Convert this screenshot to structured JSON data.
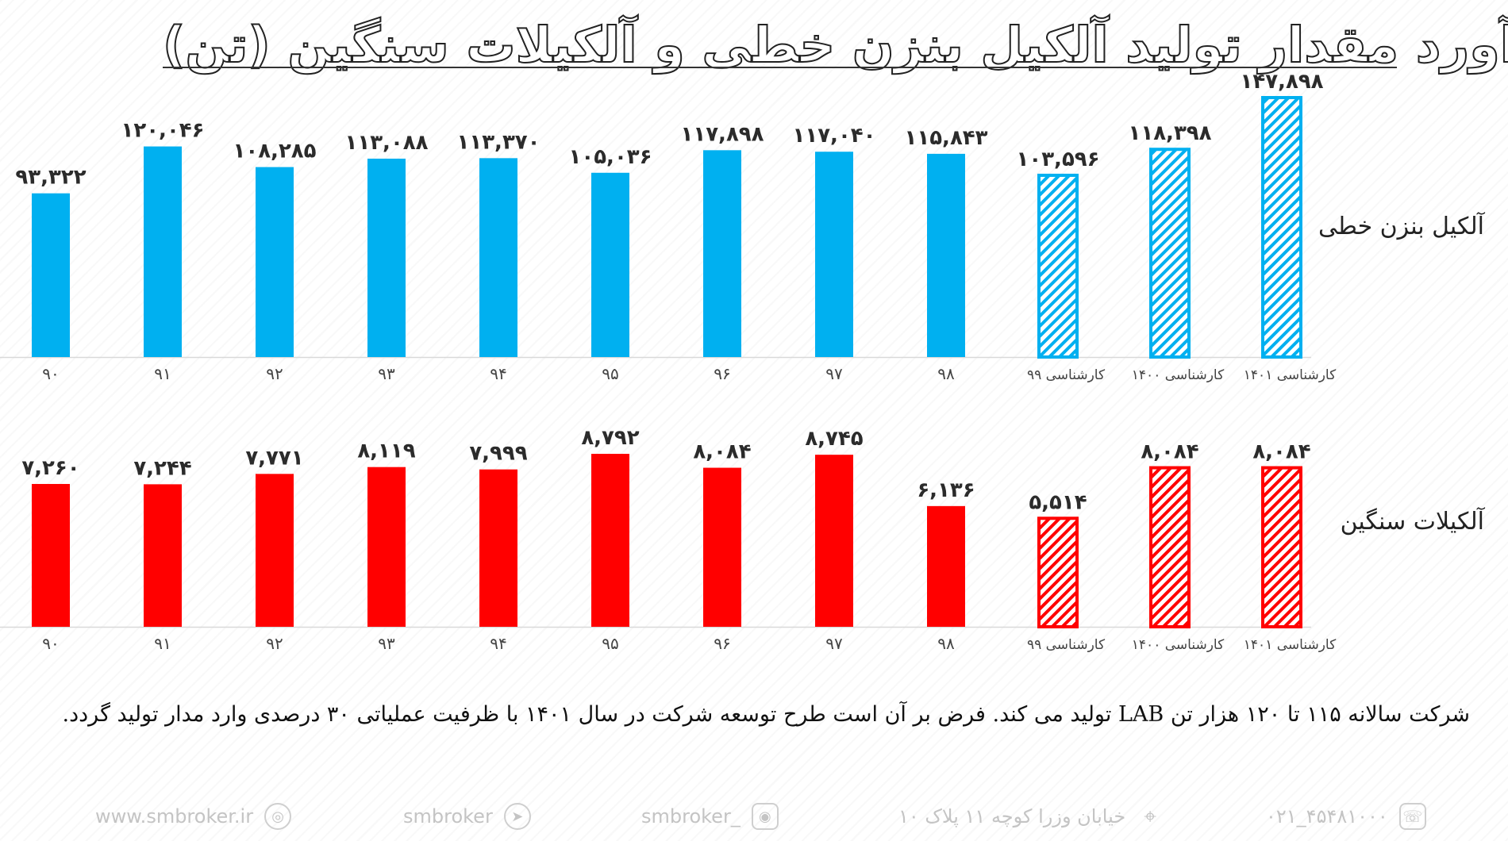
{
  "title": "برآورد مقدار تولید آلکیل بنزن خطی و آلکیلات سنگین (تن)",
  "colors": {
    "lab": "#00b0f0",
    "heavy": "#ff0000",
    "axis": "#d9d9d9"
  },
  "series_labels": {
    "lab": "آلکیل بنزن خطی",
    "heavy": "آلکیلات سنگین"
  },
  "chart_data": [
    {
      "type": "bar",
      "name": "آلکیل بنزن خطی",
      "categories": [
        "۹۰",
        "۹۱",
        "۹۲",
        "۹۳",
        "۹۴",
        "۹۵",
        "۹۶",
        "۹۷",
        "۹۸",
        "کارشناسی ۹۹",
        "کارشناسی ۱۴۰۰",
        "کارشناسی ۱۴۰۱"
      ],
      "values": [
        93322,
        120046,
        108285,
        113088,
        113370,
        105036,
        117898,
        117040,
        115843,
        103596,
        118398,
        147898
      ],
      "value_labels": [
        "۹۳,۳۲۲",
        "۱۲۰,۰۴۶",
        "۱۰۸,۲۸۵",
        "۱۱۳,۰۸۸",
        "۱۱۳,۳۷۰",
        "۱۰۵,۰۳۶",
        "۱۱۷,۸۹۸",
        "۱۱۷,۰۴۰",
        "۱۱۵,۸۴۳",
        "۱۰۳,۵۹۶",
        "۱۱۸,۳۹۸",
        "۱۴۷,۸۹۸"
      ],
      "estimated": [
        false,
        false,
        false,
        false,
        false,
        false,
        false,
        false,
        false,
        true,
        true,
        true
      ],
      "ylim": [
        0,
        150000
      ],
      "color": "#00b0f0"
    },
    {
      "type": "bar",
      "name": "آلکیلات سنگین",
      "categories": [
        "۹۰",
        "۹۱",
        "۹۲",
        "۹۳",
        "۹۴",
        "۹۵",
        "۹۶",
        "۹۷",
        "۹۸",
        "کارشناسی ۹۹",
        "کارشناسی ۱۴۰۰",
        "کارشناسی ۱۴۰۱"
      ],
      "values": [
        7260,
        7244,
        7771,
        8119,
        7999,
        8792,
        8084,
        8745,
        6136,
        5514,
        8084,
        8084
      ],
      "value_labels": [
        "۷,۲۶۰",
        "۷,۲۴۴",
        "۷,۷۷۱",
        "۸,۱۱۹",
        "۷,۹۹۹",
        "۸,۷۹۲",
        "۸,۰۸۴",
        "۸,۷۴۵",
        "۶,۱۳۶",
        "۵,۵۱۴",
        "۸,۰۸۴",
        "۸,۰۸۴"
      ],
      "estimated": [
        false,
        false,
        false,
        false,
        false,
        false,
        false,
        false,
        false,
        true,
        true,
        true
      ],
      "ylim": [
        0,
        9000
      ],
      "color": "#ff0000"
    }
  ],
  "note": "شرکت سالانه ۱۱۵ تا ۱۲۰ هزار تن LAB تولید می کند. فرض بر آن است طرح توسعه شرکت در سال ۱۴۰۱ با ظرفیت عملیاتی ۳۰ درصدی وارد مدار تولید گردد.",
  "footer": {
    "website": "www.smbroker.ir",
    "telegram": "smbroker",
    "instagram": "smbroker_",
    "address": "خیابان وزرا کوچه ۱۱ پلاک ۱۰",
    "phone": "۰۲۱_۴۵۴۸۱۰۰۰"
  }
}
